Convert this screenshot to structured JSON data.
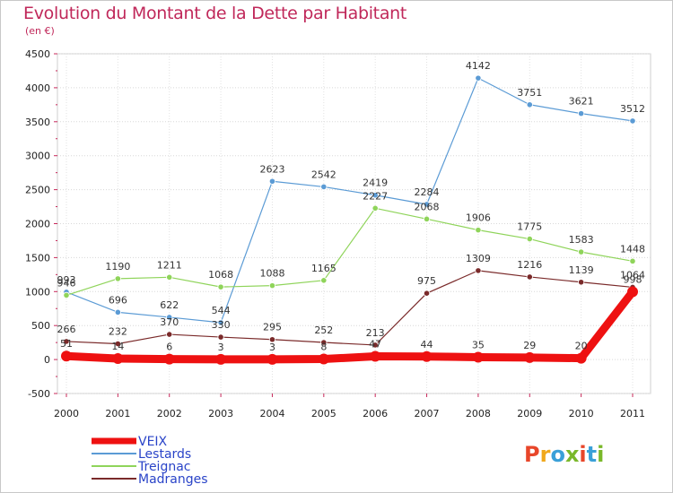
{
  "header": {
    "title": "Evolution du Montant de la Dette par Habitant",
    "subtitle": "(en €)"
  },
  "logo": {
    "text": "Proxiti",
    "colors": [
      "#e8462a",
      "#f0a81c",
      "#3aa0d8",
      "#7ab82a",
      "#e8462a",
      "#3aa0d8",
      "#7ab82a"
    ]
  },
  "chart_data": {
    "type": "line",
    "x": [
      "2000",
      "2001",
      "2002",
      "2003",
      "2004",
      "2005",
      "2006",
      "2007",
      "2008",
      "2009",
      "2010",
      "2011"
    ],
    "ylim": [
      -500,
      4500
    ],
    "yticks": [
      "4500",
      "4000",
      "3500",
      "3000",
      "2500",
      "2000",
      "1500",
      "1000",
      "500",
      "0",
      "-500"
    ],
    "legend_position": "bottom-left",
    "series": [
      {
        "name": "Lestards",
        "color": "#5b9bd5",
        "values": [
          993,
          696,
          622,
          544,
          2623,
          2542,
          2419,
          2284,
          4142,
          3751,
          3621,
          3512
        ]
      },
      {
        "name": "Treignac",
        "color": "#8fd45a",
        "values": [
          946,
          1190,
          1211,
          1068,
          1088,
          1165,
          2227,
          2068,
          1906,
          1775,
          1583,
          1448
        ]
      },
      {
        "name": "Madranges",
        "color": "#7a2a2a",
        "values": [
          266,
          232,
          370,
          330,
          295,
          252,
          213,
          975,
          1309,
          1216,
          1139,
          1064
        ]
      },
      {
        "name": "VEIX",
        "color": "#ee1111",
        "values": [
          51,
          14,
          6,
          3,
          3,
          8,
          47,
          44,
          35,
          29,
          20,
          998
        ]
      }
    ],
    "legend_order": [
      "VEIX",
      "Lestards",
      "Treignac",
      "Madranges"
    ]
  }
}
